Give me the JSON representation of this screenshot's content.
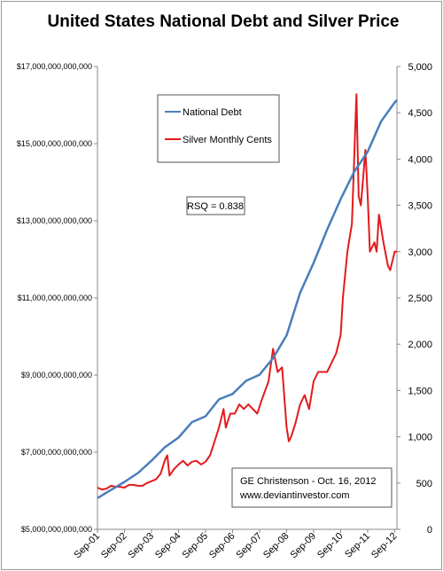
{
  "chart_data": {
    "type": "line",
    "title": "United States National Debt and Silver Price",
    "x_tick_labels": [
      "Sep-01",
      "Sep-02",
      "Sep-03",
      "Sep-04",
      "Sep-05",
      "Sep-06",
      "Sep-07",
      "Sep-08",
      "Sep-09",
      "Sep-10",
      "Sep-11",
      "Sep-12"
    ],
    "left_axis": {
      "ylim": [
        5000000000000,
        17000000000000
      ],
      "tick_labels": [
        "$5,000,000,000,000",
        "$7,000,000,000,000",
        "$9,000,000,000,000",
        "$11,000,000,000,000",
        "$13,000,000,000,000",
        "$15,000,000,000,000",
        "$17,000,000,000,000"
      ]
    },
    "right_axis": {
      "ylim": [
        0,
        5000
      ],
      "tick_labels": [
        "0",
        "500",
        "1,000",
        "1,500",
        "2,000",
        "2,500",
        "3,000",
        "3,500",
        "4,000",
        "4,500",
        "5,000"
      ]
    },
    "x": [
      "2001-09",
      "2002-03",
      "2002-09",
      "2003-03",
      "2003-09",
      "2004-03",
      "2004-09",
      "2005-03",
      "2005-09",
      "2006-03",
      "2006-09",
      "2007-03",
      "2007-09",
      "2008-03",
      "2008-09",
      "2009-03",
      "2009-09",
      "2010-03",
      "2010-09",
      "2011-03",
      "2011-09",
      "2012-03",
      "2012-09",
      "2012-10"
    ],
    "series": [
      {
        "name": "National Debt",
        "axis": "left",
        "color": "#4a7ebb",
        "values": [
          5810000000000,
          6020000000000,
          6230000000000,
          6460000000000,
          6780000000000,
          7130000000000,
          7380000000000,
          7780000000000,
          7930000000000,
          8370000000000,
          8510000000000,
          8850000000000,
          9010000000000,
          9440000000000,
          10030000000000,
          11130000000000,
          11910000000000,
          12770000000000,
          13560000000000,
          14270000000000,
          14790000000000,
          15580000000000,
          16070000000000,
          16130000000000
        ]
      },
      {
        "name": "Silver Monthly Cents",
        "axis": "right",
        "color": "#e31a1c",
        "silver_x": [
          "2001-09",
          "2001-11",
          "2002-01",
          "2002-03",
          "2002-05",
          "2002-07",
          "2002-09",
          "2002-11",
          "2003-01",
          "2003-03",
          "2003-05",
          "2003-07",
          "2003-09",
          "2003-11",
          "2004-01",
          "2004-03",
          "2004-04",
          "2004-05",
          "2004-07",
          "2004-09",
          "2004-11",
          "2005-01",
          "2005-03",
          "2005-05",
          "2005-07",
          "2005-09",
          "2005-11",
          "2006-01",
          "2006-03",
          "2006-05",
          "2006-06",
          "2006-08",
          "2006-10",
          "2006-12",
          "2007-02",
          "2007-04",
          "2007-06",
          "2007-08",
          "2007-10",
          "2008-01",
          "2008-03",
          "2008-05",
          "2008-07",
          "2008-09",
          "2008-10",
          "2008-11",
          "2009-01",
          "2009-03",
          "2009-05",
          "2009-07",
          "2009-09",
          "2009-11",
          "2010-01",
          "2010-03",
          "2010-05",
          "2010-07",
          "2010-09",
          "2010-10",
          "2010-12",
          "2011-02",
          "2011-04",
          "2011-05",
          "2011-06",
          "2011-07",
          "2011-08",
          "2011-09",
          "2011-10",
          "2011-12",
          "2012-01",
          "2012-02",
          "2012-04",
          "2012-06",
          "2012-07",
          "2012-09",
          "2012-10"
        ],
        "silver_values": [
          450,
          430,
          440,
          470,
          460,
          460,
          450,
          480,
          480,
          470,
          470,
          500,
          520,
          540,
          600,
          750,
          800,
          580,
          650,
          700,
          740,
          690,
          730,
          740,
          700,
          730,
          800,
          950,
          1100,
          1300,
          1100,
          1250,
          1250,
          1350,
          1300,
          1350,
          1300,
          1250,
          1400,
          1600,
          1950,
          1700,
          1750,
          1100,
          950,
          1000,
          1150,
          1350,
          1450,
          1300,
          1600,
          1700,
          1700,
          1700,
          1800,
          1900,
          2100,
          2500,
          3000,
          3300,
          4700,
          3600,
          3500,
          3800,
          4100,
          3600,
          3000,
          3100,
          3000,
          3400,
          3100,
          2850,
          2800,
          3000,
          3000
        ]
      }
    ],
    "legend": [
      "National Debt",
      "Silver Monthly Cents"
    ],
    "annotations": [
      "RSQ = 0.838",
      "GE Christenson - Oct. 16, 2012",
      "www.deviantinvestor.com"
    ],
    "grid": false
  }
}
